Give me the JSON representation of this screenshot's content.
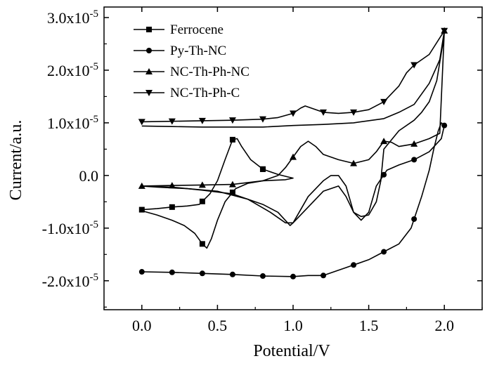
{
  "chart_data": {
    "type": "line",
    "title": "",
    "xlabel": "Potential/V",
    "ylabel": "Current/a.u.",
    "xlim": [
      -0.25,
      2.25
    ],
    "ylim": [
      -2.55,
      3.2
    ],
    "y_exponent_note": "values in units of 1x10^-5",
    "x_ticks": [
      0.0,
      0.5,
      1.0,
      1.5,
      2.0
    ],
    "x_tick_labels": [
      "0.0",
      "0.5",
      "1.0",
      "1.5",
      "2.0"
    ],
    "y_ticks": [
      3.0,
      2.0,
      1.0,
      0.0,
      -1.0,
      -2.0
    ],
    "y_tick_labels": [
      {
        "base": "3.0x10",
        "exp": "-5"
      },
      {
        "base": "2.0x10",
        "exp": "-5"
      },
      {
        "base": "1.0x10",
        "exp": "-5"
      },
      {
        "base": "0.0",
        "exp": ""
      },
      {
        "base": "-1.0x10",
        "exp": "-5"
      },
      {
        "base": "-2.0x10",
        "exp": "-5"
      }
    ],
    "legend_position": "top-left",
    "series": [
      {
        "name": "Ferrocene",
        "marker": "square",
        "points": [
          [
            0.0,
            -0.65
          ],
          [
            0.1,
            -0.63
          ],
          [
            0.2,
            -0.6
          ],
          [
            0.3,
            -0.58
          ],
          [
            0.38,
            -0.55
          ],
          [
            0.45,
            -0.35
          ],
          [
            0.5,
            -0.1
          ],
          [
            0.55,
            0.3
          ],
          [
            0.6,
            0.68
          ],
          [
            0.63,
            0.7
          ],
          [
            0.66,
            0.55
          ],
          [
            0.72,
            0.3
          ],
          [
            0.8,
            0.12
          ],
          [
            0.9,
            0.02
          ],
          [
            0.97,
            -0.03
          ],
          [
            1.0,
            -0.05
          ],
          [
            0.95,
            -0.08
          ],
          [
            0.8,
            -0.1
          ],
          [
            0.7,
            -0.15
          ],
          [
            0.62,
            -0.25
          ],
          [
            0.55,
            -0.5
          ],
          [
            0.5,
            -0.85
          ],
          [
            0.46,
            -1.2
          ],
          [
            0.43,
            -1.38
          ],
          [
            0.4,
            -1.3
          ],
          [
            0.35,
            -1.1
          ],
          [
            0.28,
            -0.95
          ],
          [
            0.2,
            -0.85
          ],
          [
            0.1,
            -0.75
          ],
          [
            0.0,
            -0.67
          ]
        ],
        "marker_x": [
          0.0,
          0.2,
          0.4,
          0.6,
          0.8,
          0.8,
          0.6,
          0.4
        ]
      },
      {
        "name": "Py-Th-NC",
        "marker": "circle",
        "points": [
          [
            0.0,
            -1.83
          ],
          [
            0.2,
            -1.84
          ],
          [
            0.4,
            -1.86
          ],
          [
            0.6,
            -1.88
          ],
          [
            0.8,
            -1.91
          ],
          [
            1.0,
            -1.92
          ],
          [
            1.1,
            -1.9
          ],
          [
            1.2,
            -1.9
          ],
          [
            1.3,
            -1.8
          ],
          [
            1.4,
            -1.7
          ],
          [
            1.5,
            -1.6
          ],
          [
            1.6,
            -1.45
          ],
          [
            1.7,
            -1.3
          ],
          [
            1.78,
            -1.0
          ],
          [
            1.85,
            -0.4
          ],
          [
            1.9,
            0.1
          ],
          [
            1.93,
            0.5
          ],
          [
            1.96,
            0.85
          ],
          [
            1.98,
            1.0
          ],
          [
            2.0,
            0.95
          ],
          [
            1.98,
            0.7
          ],
          [
            1.9,
            0.45
          ],
          [
            1.8,
            0.3
          ],
          [
            1.7,
            0.2
          ],
          [
            1.62,
            0.1
          ],
          [
            1.55,
            -0.2
          ],
          [
            1.5,
            -0.7
          ],
          [
            1.45,
            -0.85
          ],
          [
            1.4,
            -0.7
          ],
          [
            1.35,
            -0.2
          ],
          [
            1.3,
            0.0
          ],
          [
            1.25,
            0.0
          ],
          [
            1.2,
            -0.1
          ],
          [
            1.1,
            -0.4
          ],
          [
            1.0,
            -0.9
          ],
          [
            0.98,
            -0.95
          ],
          [
            0.9,
            -0.7
          ],
          [
            0.8,
            -0.55
          ],
          [
            0.7,
            -0.45
          ],
          [
            0.6,
            -0.35
          ],
          [
            0.4,
            -0.28
          ],
          [
            0.2,
            -0.22
          ],
          [
            0.0,
            -0.2
          ]
        ],
        "marker_x": [
          0.0,
          0.2,
          0.4,
          0.6,
          0.8,
          1.0,
          1.2,
          1.4,
          1.6,
          1.8,
          2.0,
          1.8,
          1.6
        ]
      },
      {
        "name": "NC-Th-Ph-NC",
        "marker": "triangle-up",
        "points": [
          [
            0.0,
            -0.2
          ],
          [
            0.2,
            -0.19
          ],
          [
            0.4,
            -0.18
          ],
          [
            0.6,
            -0.17
          ],
          [
            0.8,
            -0.1
          ],
          [
            0.9,
            0.0
          ],
          [
            0.95,
            0.15
          ],
          [
            1.0,
            0.35
          ],
          [
            1.05,
            0.55
          ],
          [
            1.1,
            0.65
          ],
          [
            1.15,
            0.55
          ],
          [
            1.2,
            0.4
          ],
          [
            1.3,
            0.3
          ],
          [
            1.4,
            0.23
          ],
          [
            1.5,
            0.3
          ],
          [
            1.55,
            0.45
          ],
          [
            1.6,
            0.65
          ],
          [
            1.65,
            0.63
          ],
          [
            1.7,
            0.55
          ],
          [
            1.8,
            0.6
          ],
          [
            1.9,
            0.7
          ],
          [
            1.97,
            0.8
          ],
          [
            2.0,
            2.75
          ],
          [
            1.99,
            2.5
          ],
          [
            1.95,
            1.8
          ],
          [
            1.9,
            1.4
          ],
          [
            1.85,
            1.2
          ],
          [
            1.8,
            1.05
          ],
          [
            1.7,
            0.85
          ],
          [
            1.6,
            0.5
          ],
          [
            1.58,
            -0.1
          ],
          [
            1.55,
            -0.5
          ],
          [
            1.5,
            -0.75
          ],
          [
            1.45,
            -0.78
          ],
          [
            1.4,
            -0.7
          ],
          [
            1.35,
            -0.4
          ],
          [
            1.3,
            -0.2
          ],
          [
            1.2,
            -0.3
          ],
          [
            1.1,
            -0.6
          ],
          [
            1.0,
            -0.9
          ],
          [
            0.95,
            -0.9
          ],
          [
            0.85,
            -0.7
          ],
          [
            0.7,
            -0.45
          ],
          [
            0.5,
            -0.3
          ],
          [
            0.3,
            -0.25
          ],
          [
            0.1,
            -0.22
          ],
          [
            0.0,
            -0.2
          ]
        ],
        "marker_x": [
          0.0,
          0.2,
          0.4,
          0.6,
          1.0,
          1.4,
          1.6,
          1.8,
          2.0
        ]
      },
      {
        "name": "NC-Th-Ph-C",
        "marker": "triangle-down",
        "points": [
          [
            0.0,
            1.02
          ],
          [
            0.2,
            1.03
          ],
          [
            0.4,
            1.04
          ],
          [
            0.6,
            1.05
          ],
          [
            0.8,
            1.07
          ],
          [
            0.9,
            1.1
          ],
          [
            1.0,
            1.18
          ],
          [
            1.05,
            1.28
          ],
          [
            1.08,
            1.32
          ],
          [
            1.12,
            1.28
          ],
          [
            1.2,
            1.2
          ],
          [
            1.3,
            1.18
          ],
          [
            1.4,
            1.2
          ],
          [
            1.5,
            1.25
          ],
          [
            1.6,
            1.4
          ],
          [
            1.7,
            1.7
          ],
          [
            1.75,
            1.95
          ],
          [
            1.8,
            2.1
          ],
          [
            1.9,
            2.3
          ],
          [
            2.0,
            2.75
          ],
          [
            1.97,
            2.2
          ],
          [
            1.9,
            1.75
          ],
          [
            1.8,
            1.35
          ],
          [
            1.7,
            1.2
          ],
          [
            1.6,
            1.08
          ],
          [
            1.4,
            1.0
          ],
          [
            1.2,
            0.97
          ],
          [
            1.0,
            0.95
          ],
          [
            0.8,
            0.92
          ],
          [
            0.6,
            0.92
          ],
          [
            0.4,
            0.92
          ],
          [
            0.2,
            0.93
          ],
          [
            0.0,
            0.94
          ]
        ],
        "marker_x": [
          0.0,
          0.2,
          0.4,
          0.6,
          0.8,
          1.0,
          1.2,
          1.4,
          1.6,
          1.8,
          2.0
        ]
      }
    ]
  }
}
